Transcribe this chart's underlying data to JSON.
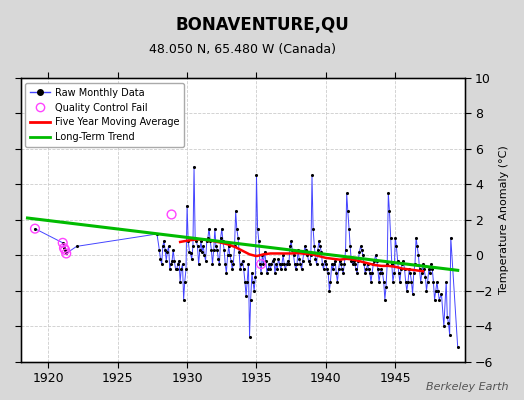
{
  "title": "BONAVENTURE,QU",
  "subtitle": "48.050 N, 65.480 W (Canada)",
  "ylabel": "Temperature Anomaly (°C)",
  "watermark": "Berkeley Earth",
  "xlim": [
    1918.0,
    1950.0
  ],
  "ylim": [
    -6,
    10
  ],
  "yticks": [
    -6,
    -4,
    -2,
    0,
    2,
    4,
    6,
    8,
    10
  ],
  "xticks": [
    1920,
    1925,
    1930,
    1935,
    1940,
    1945
  ],
  "fig_bg_color": "#d8d8d8",
  "plot_bg_color": "#ffffff",
  "raw_color": "#4444ff",
  "raw_dot_color": "#000000",
  "moving_avg_color": "#ff0000",
  "trend_color": "#00bb00",
  "qc_fail_color": "#ff44ff",
  "raw_monthly": [
    [
      1919.04,
      1.5
    ],
    [
      1921.04,
      0.7
    ],
    [
      1921.13,
      0.4
    ],
    [
      1921.21,
      0.3
    ],
    [
      1921.29,
      0.1
    ],
    [
      1922.04,
      0.5
    ],
    [
      1927.83,
      1.2
    ],
    [
      1928.0,
      0.3
    ],
    [
      1928.08,
      -0.2
    ],
    [
      1928.17,
      -0.5
    ],
    [
      1928.25,
      0.5
    ],
    [
      1928.33,
      0.8
    ],
    [
      1928.42,
      0.3
    ],
    [
      1928.5,
      -0.3
    ],
    [
      1928.58,
      0.2
    ],
    [
      1928.67,
      0.5
    ],
    [
      1928.75,
      -0.8
    ],
    [
      1928.83,
      -0.5
    ],
    [
      1928.92,
      -0.3
    ],
    [
      1929.0,
      0.3
    ],
    [
      1929.08,
      -0.3
    ],
    [
      1929.17,
      -0.8
    ],
    [
      1929.25,
      -0.8
    ],
    [
      1929.33,
      -0.5
    ],
    [
      1929.42,
      -0.3
    ],
    [
      1929.5,
      -1.5
    ],
    [
      1929.58,
      -0.8
    ],
    [
      1929.67,
      -0.5
    ],
    [
      1929.75,
      -2.5
    ],
    [
      1929.83,
      -1.5
    ],
    [
      1929.92,
      -0.8
    ],
    [
      1930.0,
      2.8
    ],
    [
      1930.08,
      0.8
    ],
    [
      1930.17,
      0.2
    ],
    [
      1930.25,
      0.1
    ],
    [
      1930.33,
      -0.2
    ],
    [
      1930.42,
      0.5
    ],
    [
      1930.5,
      5.0
    ],
    [
      1930.58,
      1.0
    ],
    [
      1930.67,
      0.8
    ],
    [
      1930.75,
      0.5
    ],
    [
      1930.83,
      -0.5
    ],
    [
      1930.92,
      0.3
    ],
    [
      1931.0,
      0.8
    ],
    [
      1931.08,
      0.2
    ],
    [
      1931.17,
      0.5
    ],
    [
      1931.25,
      0.0
    ],
    [
      1931.33,
      -0.3
    ],
    [
      1931.42,
      0.8
    ],
    [
      1931.5,
      1.0
    ],
    [
      1931.58,
      1.5
    ],
    [
      1931.67,
      0.8
    ],
    [
      1931.75,
      0.3
    ],
    [
      1931.83,
      -0.5
    ],
    [
      1931.92,
      0.3
    ],
    [
      1932.0,
      1.5
    ],
    [
      1932.08,
      0.5
    ],
    [
      1932.17,
      0.3
    ],
    [
      1932.25,
      -0.2
    ],
    [
      1932.33,
      -0.5
    ],
    [
      1932.42,
      1.0
    ],
    [
      1932.5,
      1.5
    ],
    [
      1932.58,
      0.8
    ],
    [
      1932.67,
      0.3
    ],
    [
      1932.75,
      -0.5
    ],
    [
      1932.83,
      -1.0
    ],
    [
      1932.92,
      0.0
    ],
    [
      1933.0,
      0.5
    ],
    [
      1933.08,
      0.0
    ],
    [
      1933.17,
      -0.3
    ],
    [
      1933.25,
      -0.8
    ],
    [
      1933.33,
      -0.5
    ],
    [
      1933.42,
      0.5
    ],
    [
      1933.5,
      2.5
    ],
    [
      1933.58,
      1.5
    ],
    [
      1933.67,
      1.0
    ],
    [
      1933.75,
      0.2
    ],
    [
      1933.83,
      -0.8
    ],
    [
      1933.92,
      -0.5
    ],
    [
      1934.0,
      -0.3
    ],
    [
      1934.08,
      -0.8
    ],
    [
      1934.17,
      -1.5
    ],
    [
      1934.25,
      -2.3
    ],
    [
      1934.33,
      -1.5
    ],
    [
      1934.42,
      -0.5
    ],
    [
      1934.5,
      -4.6
    ],
    [
      1934.58,
      -2.5
    ],
    [
      1934.67,
      -1.0
    ],
    [
      1934.75,
      -1.5
    ],
    [
      1934.83,
      -2.0
    ],
    [
      1934.92,
      -1.2
    ],
    [
      1935.0,
      4.5
    ],
    [
      1935.08,
      1.5
    ],
    [
      1935.17,
      0.8
    ],
    [
      1935.25,
      -0.5
    ],
    [
      1935.33,
      -1.0
    ],
    [
      1935.42,
      0.0
    ],
    [
      1935.5,
      -0.5
    ],
    [
      1935.58,
      0.2
    ],
    [
      1935.67,
      -0.3
    ],
    [
      1935.75,
      -1.0
    ],
    [
      1935.83,
      -0.8
    ],
    [
      1935.92,
      -0.5
    ],
    [
      1936.0,
      -0.8
    ],
    [
      1936.08,
      -0.5
    ],
    [
      1936.17,
      -0.3
    ],
    [
      1936.25,
      -0.2
    ],
    [
      1936.33,
      -1.0
    ],
    [
      1936.42,
      -0.5
    ],
    [
      1936.5,
      -0.8
    ],
    [
      1936.58,
      -0.2
    ],
    [
      1936.67,
      -0.5
    ],
    [
      1936.75,
      -0.8
    ],
    [
      1936.83,
      -0.5
    ],
    [
      1936.92,
      0.0
    ],
    [
      1937.0,
      -0.5
    ],
    [
      1937.08,
      -0.8
    ],
    [
      1937.17,
      -0.5
    ],
    [
      1937.25,
      -0.3
    ],
    [
      1937.33,
      -0.5
    ],
    [
      1937.42,
      0.5
    ],
    [
      1937.5,
      0.8
    ],
    [
      1937.58,
      0.3
    ],
    [
      1937.67,
      0.0
    ],
    [
      1937.75,
      -0.5
    ],
    [
      1937.83,
      -0.8
    ],
    [
      1937.92,
      -0.5
    ],
    [
      1938.0,
      0.3
    ],
    [
      1938.08,
      -0.2
    ],
    [
      1938.17,
      -0.5
    ],
    [
      1938.25,
      -0.8
    ],
    [
      1938.33,
      -0.3
    ],
    [
      1938.42,
      0.2
    ],
    [
      1938.5,
      0.5
    ],
    [
      1938.58,
      0.3
    ],
    [
      1938.67,
      0.0
    ],
    [
      1938.75,
      -0.3
    ],
    [
      1938.83,
      -0.5
    ],
    [
      1938.92,
      0.0
    ],
    [
      1939.0,
      4.5
    ],
    [
      1939.08,
      1.5
    ],
    [
      1939.17,
      0.5
    ],
    [
      1939.25,
      -0.2
    ],
    [
      1939.33,
      -0.5
    ],
    [
      1939.42,
      0.3
    ],
    [
      1939.5,
      0.8
    ],
    [
      1939.58,
      0.5
    ],
    [
      1939.67,
      0.2
    ],
    [
      1939.75,
      -0.5
    ],
    [
      1939.83,
      -0.8
    ],
    [
      1939.92,
      -0.3
    ],
    [
      1940.0,
      -0.5
    ],
    [
      1940.08,
      -0.8
    ],
    [
      1940.17,
      -1.0
    ],
    [
      1940.25,
      -2.0
    ],
    [
      1940.33,
      -1.5
    ],
    [
      1940.42,
      -0.5
    ],
    [
      1940.5,
      -0.8
    ],
    [
      1940.58,
      -0.5
    ],
    [
      1940.67,
      -0.3
    ],
    [
      1940.75,
      -1.0
    ],
    [
      1940.83,
      -1.5
    ],
    [
      1940.92,
      -0.8
    ],
    [
      1941.0,
      -0.3
    ],
    [
      1941.08,
      -0.5
    ],
    [
      1941.17,
      -0.8
    ],
    [
      1941.25,
      -1.0
    ],
    [
      1941.33,
      -0.5
    ],
    [
      1941.42,
      0.3
    ],
    [
      1941.5,
      3.5
    ],
    [
      1941.58,
      2.5
    ],
    [
      1941.67,
      1.5
    ],
    [
      1941.75,
      0.5
    ],
    [
      1941.83,
      -0.3
    ],
    [
      1941.92,
      -0.5
    ],
    [
      1942.0,
      -0.3
    ],
    [
      1942.08,
      -0.5
    ],
    [
      1942.17,
      -0.8
    ],
    [
      1942.25,
      -1.0
    ],
    [
      1942.33,
      -0.3
    ],
    [
      1942.42,
      0.2
    ],
    [
      1942.5,
      0.5
    ],
    [
      1942.58,
      0.3
    ],
    [
      1942.67,
      0.0
    ],
    [
      1942.75,
      -0.5
    ],
    [
      1942.83,
      -1.0
    ],
    [
      1942.92,
      -0.8
    ],
    [
      1943.0,
      -0.5
    ],
    [
      1943.08,
      -0.8
    ],
    [
      1943.17,
      -1.0
    ],
    [
      1943.25,
      -1.5
    ],
    [
      1943.33,
      -1.0
    ],
    [
      1943.42,
      -0.5
    ],
    [
      1943.5,
      -0.3
    ],
    [
      1943.58,
      0.0
    ],
    [
      1943.67,
      -0.3
    ],
    [
      1943.75,
      -0.8
    ],
    [
      1943.83,
      -1.5
    ],
    [
      1943.92,
      -1.0
    ],
    [
      1944.0,
      -0.8
    ],
    [
      1944.08,
      -1.0
    ],
    [
      1944.17,
      -1.5
    ],
    [
      1944.25,
      -2.5
    ],
    [
      1944.33,
      -1.8
    ],
    [
      1944.42,
      -0.5
    ],
    [
      1944.5,
      3.5
    ],
    [
      1944.58,
      2.5
    ],
    [
      1944.67,
      1.0
    ],
    [
      1944.75,
      -0.5
    ],
    [
      1944.83,
      -1.5
    ],
    [
      1944.92,
      -1.0
    ],
    [
      1945.0,
      1.0
    ],
    [
      1945.08,
      0.5
    ],
    [
      1945.17,
      -0.3
    ],
    [
      1945.25,
      -1.0
    ],
    [
      1945.33,
      -1.5
    ],
    [
      1945.42,
      -0.8
    ],
    [
      1945.5,
      -0.5
    ],
    [
      1945.58,
      -0.3
    ],
    [
      1945.67,
      -0.8
    ],
    [
      1945.75,
      -1.5
    ],
    [
      1945.83,
      -2.0
    ],
    [
      1945.92,
      -1.5
    ],
    [
      1946.0,
      -0.8
    ],
    [
      1946.08,
      -1.0
    ],
    [
      1946.17,
      -1.5
    ],
    [
      1946.25,
      -2.2
    ],
    [
      1946.33,
      -1.0
    ],
    [
      1946.42,
      -0.5
    ],
    [
      1946.5,
      1.0
    ],
    [
      1946.58,
      0.5
    ],
    [
      1946.67,
      0.0
    ],
    [
      1946.75,
      -0.8
    ],
    [
      1946.83,
      -1.5
    ],
    [
      1946.92,
      -1.0
    ],
    [
      1947.0,
      -0.5
    ],
    [
      1947.08,
      -0.8
    ],
    [
      1947.17,
      -1.2
    ],
    [
      1947.25,
      -2.0
    ],
    [
      1947.33,
      -1.5
    ],
    [
      1947.42,
      -0.8
    ],
    [
      1947.5,
      -1.0
    ],
    [
      1947.58,
      -0.5
    ],
    [
      1947.67,
      -0.8
    ],
    [
      1947.75,
      -1.5
    ],
    [
      1947.83,
      -2.5
    ],
    [
      1947.92,
      -2.0
    ],
    [
      1948.0,
      -1.5
    ],
    [
      1948.08,
      -2.0
    ],
    [
      1948.17,
      -2.5
    ],
    [
      1948.33,
      -2.2
    ],
    [
      1948.5,
      -4.0
    ],
    [
      1948.67,
      -1.5
    ],
    [
      1948.75,
      -3.5
    ],
    [
      1948.83,
      -3.8
    ],
    [
      1948.92,
      -4.5
    ],
    [
      1949.0,
      1.0
    ],
    [
      1949.5,
      -5.2
    ]
  ],
  "qc_fail_points": [
    [
      1919.04,
      1.5
    ],
    [
      1921.04,
      0.7
    ],
    [
      1921.13,
      0.4
    ],
    [
      1921.21,
      0.3
    ],
    [
      1921.29,
      0.1
    ],
    [
      1928.88,
      2.3
    ],
    [
      1935.33,
      -0.5
    ]
  ],
  "moving_avg": [
    [
      1929.5,
      0.75
    ],
    [
      1930.0,
      0.82
    ],
    [
      1930.5,
      0.88
    ],
    [
      1931.0,
      0.9
    ],
    [
      1931.5,
      0.85
    ],
    [
      1932.0,
      0.78
    ],
    [
      1932.5,
      0.7
    ],
    [
      1933.0,
      0.6
    ],
    [
      1933.5,
      0.45
    ],
    [
      1934.0,
      0.25
    ],
    [
      1934.5,
      0.05
    ],
    [
      1935.0,
      -0.05
    ],
    [
      1935.5,
      0.05
    ],
    [
      1936.0,
      0.1
    ],
    [
      1936.5,
      0.1
    ],
    [
      1937.0,
      0.1
    ],
    [
      1937.5,
      0.1
    ],
    [
      1938.0,
      0.12
    ],
    [
      1938.5,
      0.08
    ],
    [
      1939.0,
      0.05
    ],
    [
      1939.5,
      -0.05
    ],
    [
      1940.0,
      -0.15
    ],
    [
      1940.5,
      -0.2
    ],
    [
      1941.0,
      -0.25
    ],
    [
      1941.5,
      -0.2
    ],
    [
      1942.0,
      -0.25
    ],
    [
      1942.5,
      -0.35
    ],
    [
      1943.0,
      -0.45
    ],
    [
      1943.5,
      -0.55
    ],
    [
      1944.0,
      -0.6
    ],
    [
      1944.5,
      -0.6
    ],
    [
      1945.0,
      -0.65
    ],
    [
      1945.5,
      -0.75
    ],
    [
      1946.0,
      -0.8
    ],
    [
      1946.5,
      -0.85
    ],
    [
      1947.0,
      -0.9
    ]
  ],
  "trend_x": [
    1918.5,
    1949.5
  ],
  "trend_y": [
    2.1,
    -0.85
  ]
}
